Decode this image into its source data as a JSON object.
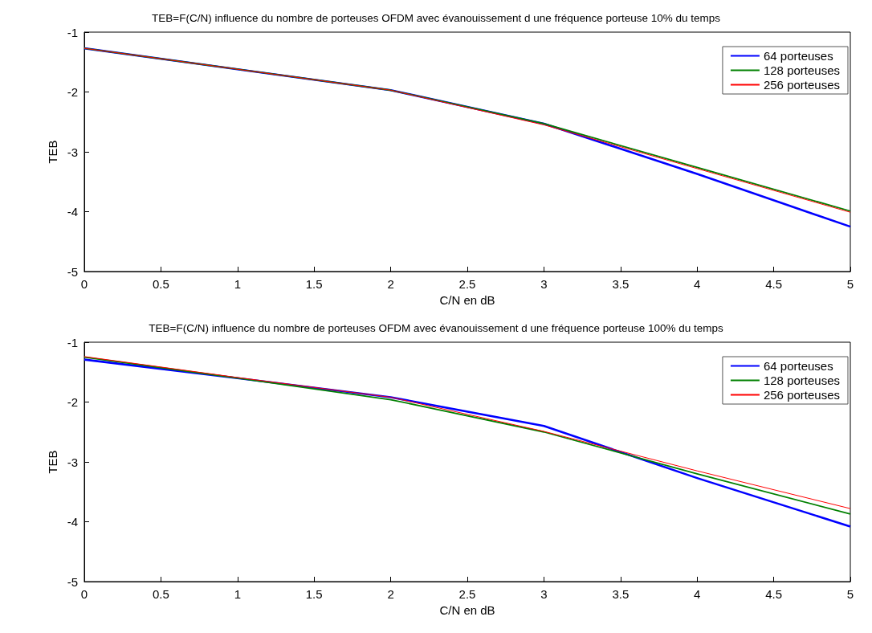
{
  "chart_data": [
    {
      "type": "line",
      "title": "TEB=F(C/N) influence du nombre de porteuses OFDM avec évanouissement d une fréquence porteuse 10% du temps",
      "xlabel": "C/N en dB",
      "ylabel": "TEB",
      "x": [
        0,
        1,
        2,
        3,
        4,
        5
      ],
      "xlim": [
        0,
        5
      ],
      "xticks": [
        0,
        0.5,
        1,
        1.5,
        2,
        2.5,
        3,
        3.5,
        4,
        4.5,
        5
      ],
      "ylim": [
        -5,
        -1
      ],
      "yticks": [
        -5,
        -4,
        -3,
        -2,
        -1
      ],
      "grid": false,
      "legend": "top right",
      "marker": "none",
      "line_style": "solid",
      "series": [
        {
          "name": "64 porteuses",
          "color": "#0000ff",
          "values": [
            -1.27,
            -1.62,
            -1.97,
            -2.53,
            -3.37,
            -4.25
          ]
        },
        {
          "name": "128 porteuses",
          "color": "#008000",
          "values": [
            -1.27,
            -1.62,
            -1.97,
            -2.53,
            -3.26,
            -3.99
          ]
        },
        {
          "name": "256 porteuses",
          "color": "#ff0000",
          "values": [
            -1.27,
            -1.62,
            -1.97,
            -2.55,
            -3.28,
            -4.01
          ]
        }
      ]
    },
    {
      "type": "line",
      "title": "TEB=F(C/N) influence du nombre de porteuses OFDM avec évanouissement d une fréquence porteuse 100% du temps",
      "xlabel": "C/N en dB",
      "ylabel": "TEB",
      "x": [
        0,
        1,
        2,
        3,
        4,
        5
      ],
      "xlim": [
        0,
        5
      ],
      "xticks": [
        0,
        0.5,
        1,
        1.5,
        2,
        2.5,
        3,
        3.5,
        4,
        4.5,
        5
      ],
      "ylim": [
        -5,
        -1
      ],
      "yticks": [
        -5,
        -4,
        -3,
        -2,
        -1
      ],
      "grid": false,
      "legend": "top right",
      "marker": "none",
      "line_style": "solid",
      "series": [
        {
          "name": "64 porteuses",
          "color": "#0000ff",
          "values": [
            -1.29,
            -1.6,
            -1.92,
            -2.4,
            -3.27,
            -4.08
          ]
        },
        {
          "name": "128 porteuses",
          "color": "#008000",
          "values": [
            -1.25,
            -1.6,
            -1.96,
            -2.5,
            -3.2,
            -3.87
          ]
        },
        {
          "name": "256 porteuses",
          "color": "#ff0000",
          "values": [
            -1.24,
            -1.59,
            -1.92,
            -2.49,
            -3.15,
            -3.78
          ]
        }
      ]
    }
  ]
}
